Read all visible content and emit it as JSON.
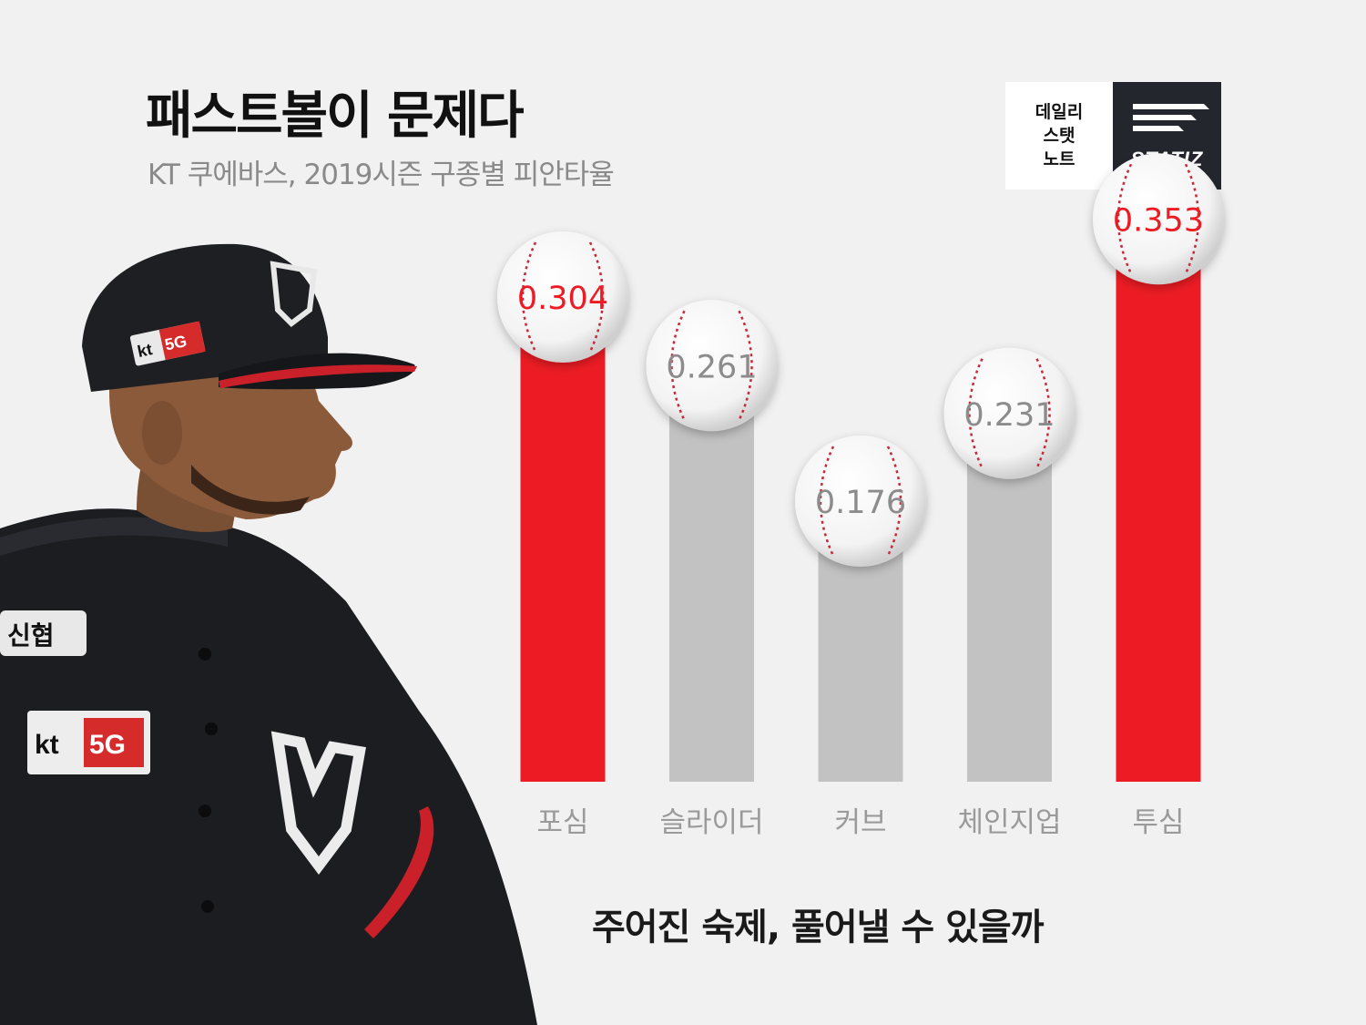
{
  "header": {
    "title": "패스트볼이 문제다",
    "subtitle": "KT 쿠에바스, 2019시즌 구종별 피안타율"
  },
  "logo": {
    "left_lines": [
      "데일리",
      "스탯",
      "노트"
    ],
    "right_text": "STATIZ"
  },
  "player_photo": {
    "cap_badge": "kt 5G",
    "chest_patch": "신협",
    "sleeve_badge_kt": "kt",
    "sleeve_badge_5g": "5G"
  },
  "colors": {
    "highlight": "#ed1c24",
    "muted_bar": "#c2c2c2",
    "muted_label": "#8c8c8c",
    "background": "#f1f1f1"
  },
  "chart_data": {
    "type": "bar",
    "title": "",
    "categories": [
      "포심",
      "슬라이더",
      "커브",
      "체인지업",
      "투심"
    ],
    "values": [
      0.304,
      0.261,
      0.176,
      0.231,
      0.353
    ],
    "value_labels": [
      "0.304",
      "0.261",
      "0.176",
      "0.231",
      "0.353"
    ],
    "highlighted": [
      true,
      false,
      false,
      false,
      true
    ],
    "xlabel": "",
    "ylabel": "",
    "ylim": [
      0,
      0.4
    ],
    "grid": false,
    "legend": "none"
  },
  "footer": {
    "note": "주어진 숙제, 풀어낼 수 있을까"
  }
}
